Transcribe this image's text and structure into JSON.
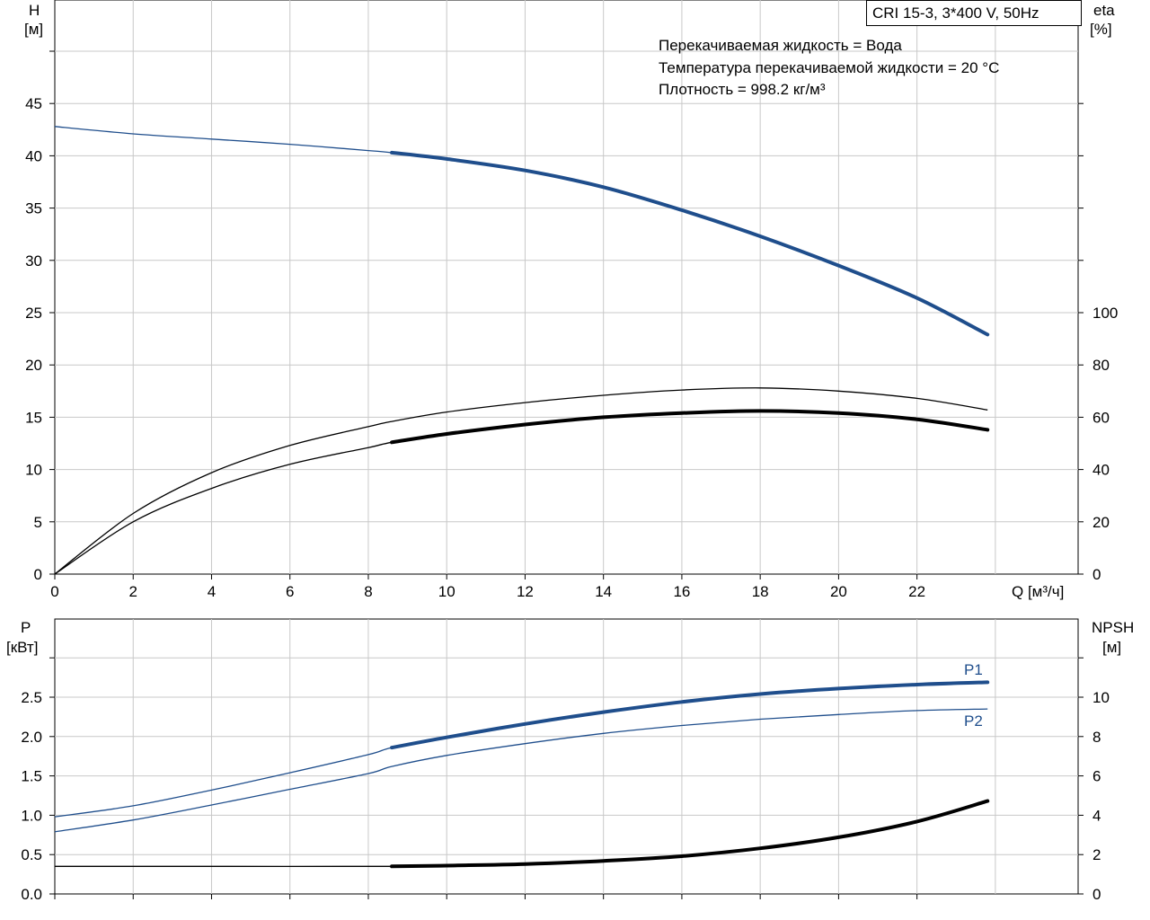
{
  "header": {
    "model": "CRI 15-3, 3*400 V, 50Hz",
    "notes": [
      "Перекачиваемая жидкость = Вода",
      "Температура перекачиваемой жидкости = 20 °C",
      "Плотность = 998.2 кг/м³"
    ]
  },
  "chart_data": [
    {
      "type": "line",
      "x": {
        "label": "Q [м³/ч]",
        "range": [
          0,
          26
        ],
        "ticks": [
          0,
          2,
          4,
          6,
          8,
          10,
          12,
          14,
          16,
          18,
          20,
          22
        ]
      },
      "y_left": {
        "label_top": "H",
        "label_unit": "[м]",
        "range": [
          0,
          55
        ],
        "ticks": [
          0,
          5,
          10,
          15,
          20,
          25,
          30,
          35,
          40,
          45
        ]
      },
      "y_right": {
        "label_top": "eta",
        "label_unit": "[%]",
        "ticks": [
          0,
          20,
          40,
          60,
          80,
          100
        ]
      },
      "grid": true,
      "series": [
        {
          "id": "H",
          "color": "#1f4e8c",
          "axis": "left",
          "bold_from": 8.6,
          "points": [
            [
              0,
              42.8
            ],
            [
              2,
              42.1
            ],
            [
              4,
              41.6
            ],
            [
              6,
              41.1
            ],
            [
              8,
              40.5
            ],
            [
              8.6,
              40.3
            ],
            [
              10,
              39.7
            ],
            [
              12,
              38.6
            ],
            [
              14,
              37.0
            ],
            [
              16,
              34.8
            ],
            [
              18,
              32.3
            ],
            [
              20,
              29.5
            ],
            [
              22,
              26.4
            ],
            [
              23.8,
              22.9
            ]
          ]
        },
        {
          "id": "eta",
          "color": "#000000",
          "axis": "left",
          "bold_from": 8.6,
          "points": [
            [
              0,
              0
            ],
            [
              2,
              5.0
            ],
            [
              4,
              8.2
            ],
            [
              6,
              10.5
            ],
            [
              8,
              12.1
            ],
            [
              8.6,
              12.6
            ],
            [
              10,
              13.4
            ],
            [
              12,
              14.3
            ],
            [
              14,
              15.0
            ],
            [
              16,
              15.4
            ],
            [
              18,
              15.6
            ],
            [
              20,
              15.4
            ],
            [
              22,
              14.8
            ],
            [
              23.8,
              13.8
            ]
          ]
        },
        {
          "id": "eta-thin",
          "color": "#000000",
          "axis": "left",
          "bold_from": null,
          "points": [
            [
              0,
              0
            ],
            [
              2,
              5.8
            ],
            [
              4,
              9.7
            ],
            [
              6,
              12.3
            ],
            [
              8,
              14.1
            ],
            [
              8.6,
              14.6
            ],
            [
              10,
              15.5
            ],
            [
              12,
              16.4
            ],
            [
              14,
              17.1
            ],
            [
              16,
              17.6
            ],
            [
              18,
              17.8
            ],
            [
              20,
              17.5
            ],
            [
              22,
              16.8
            ],
            [
              23.8,
              15.7
            ]
          ]
        }
      ]
    },
    {
      "type": "line",
      "x": {
        "range": [
          0,
          26
        ],
        "ticks": [
          0,
          2,
          4,
          6,
          8,
          10,
          12,
          14,
          16,
          18,
          20,
          22
        ]
      },
      "y_left": {
        "label_top": "P",
        "label_unit": "[кВт]",
        "range": [
          0,
          3.5
        ],
        "ticks": [
          "0.0",
          "0.5",
          "1.0",
          "1.5",
          "2.0",
          "2.5"
        ]
      },
      "y_right": {
        "label_top": "NPSH",
        "label_unit": "[м]",
        "ticks": [
          0,
          2,
          4,
          6,
          8,
          10
        ]
      },
      "grid": true,
      "series": [
        {
          "id": "P1",
          "name": "P1",
          "color": "#1f4e8c",
          "axis": "left",
          "bold_from": 8.6,
          "points": [
            [
              0,
              0.98
            ],
            [
              2,
              1.12
            ],
            [
              4,
              1.32
            ],
            [
              6,
              1.54
            ],
            [
              8,
              1.77
            ],
            [
              8.6,
              1.86
            ],
            [
              10,
              1.99
            ],
            [
              12,
              2.16
            ],
            [
              14,
              2.31
            ],
            [
              16,
              2.44
            ],
            [
              18,
              2.54
            ],
            [
              20,
              2.61
            ],
            [
              22,
              2.66
            ],
            [
              23.8,
              2.69
            ]
          ]
        },
        {
          "id": "P2",
          "name": "P2",
          "color": "#1f4e8c",
          "axis": "left",
          "bold_from": null,
          "points": [
            [
              0,
              0.79
            ],
            [
              2,
              0.94
            ],
            [
              4,
              1.13
            ],
            [
              6,
              1.33
            ],
            [
              8,
              1.53
            ],
            [
              8.6,
              1.62
            ],
            [
              10,
              1.76
            ],
            [
              12,
              1.91
            ],
            [
              14,
              2.04
            ],
            [
              16,
              2.14
            ],
            [
              18,
              2.22
            ],
            [
              20,
              2.28
            ],
            [
              22,
              2.33
            ],
            [
              23.8,
              2.35
            ]
          ]
        },
        {
          "id": "NPSH",
          "color": "#000000",
          "axis": "left",
          "bold_from": 8.6,
          "points": [
            [
              0,
              0.35
            ],
            [
              4,
              0.35
            ],
            [
              8.6,
              0.35
            ],
            [
              10,
              0.36
            ],
            [
              12,
              0.38
            ],
            [
              14,
              0.42
            ],
            [
              16,
              0.48
            ],
            [
              18,
              0.58
            ],
            [
              20,
              0.72
            ],
            [
              22,
              0.92
            ],
            [
              23.8,
              1.18
            ]
          ]
        }
      ]
    }
  ]
}
